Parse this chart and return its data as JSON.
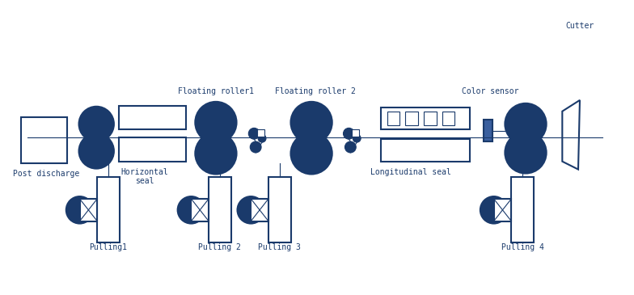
{
  "bg_color": "#ffffff",
  "line_color": "#1a3a6b",
  "line_width": 1.5,
  "thin_line": 0.8,
  "labels": {
    "post_discharge": "Post discharge",
    "horizontal_seal": "Horizontal\nseal",
    "floating_roller1": "Floating roller1",
    "floating_roller2": "Floating roller 2",
    "longitudinal_seal": "Longitudinal seal",
    "color_sensor": "Color sensor",
    "cutter": "Cutter",
    "pulling1": "Pulling1",
    "pulling2": "Pulling 2",
    "pulling3": "Pulling 3",
    "pulling4": "Pulling 4"
  }
}
